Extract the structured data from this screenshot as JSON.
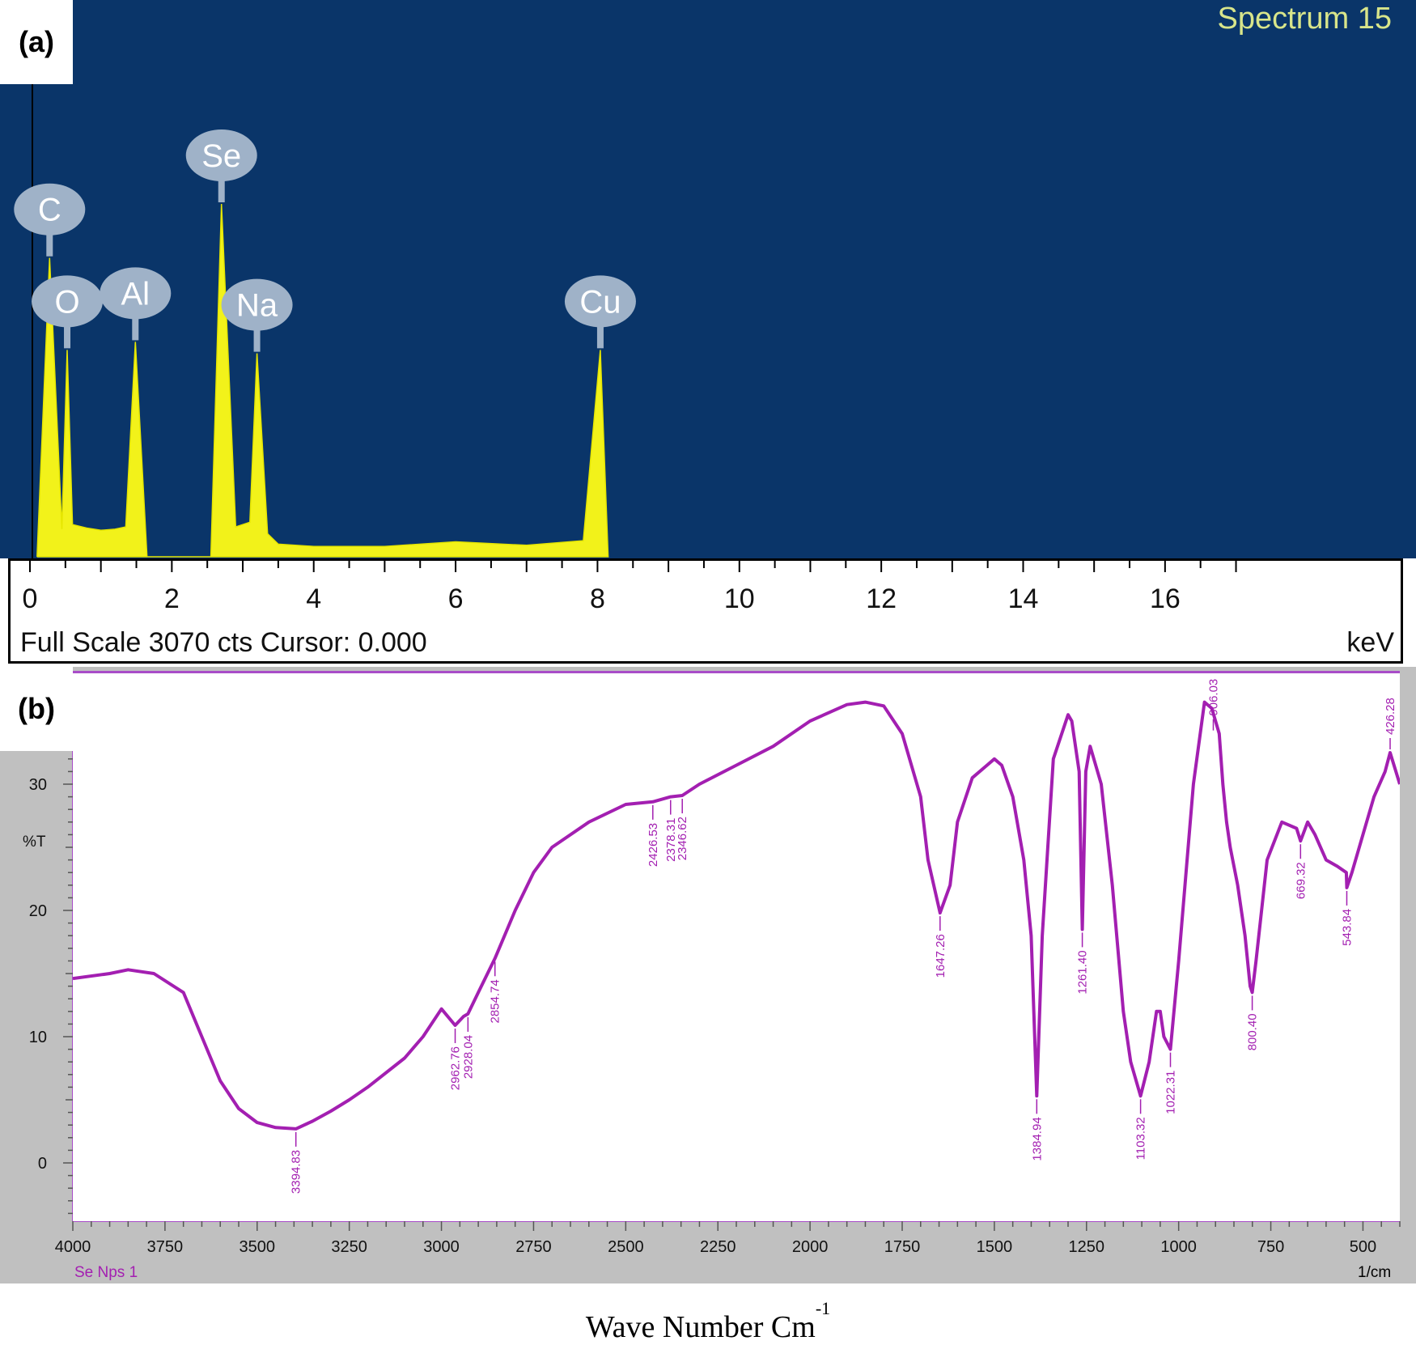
{
  "panels": {
    "a": {
      "label": "(a)",
      "spectrum_title": "Spectrum 15",
      "footer_left": "Full Scale 3070 cts Cursor: 0.000",
      "x_unit": "keV",
      "x_ticks": [
        0,
        2,
        4,
        6,
        8,
        10,
        12,
        14,
        16
      ]
    },
    "b": {
      "label": "(b)",
      "y_axis_label": "%T",
      "y_ticks": [
        0,
        10,
        20,
        30
      ],
      "x_ticks": [
        4000,
        3750,
        3500,
        3250,
        3000,
        2750,
        2500,
        2250,
        2000,
        1750,
        1500,
        1250,
        1000,
        750,
        500
      ],
      "sample_name": "Se Nps 1",
      "x_unit": "1/cm"
    }
  },
  "x_axis_caption": {
    "text": "Wave Number Cm",
    "superscript": "-1"
  },
  "colors": {
    "edx_background": "#0a3569",
    "edx_peaks": "#f2f21a",
    "ftir_line": "#a31fb1",
    "frame_gray": "#c0c0c0"
  },
  "chart_data": [
    {
      "type": "line",
      "title": "Spectrum 15",
      "xlabel": "keV",
      "xlim": [
        0,
        17.5
      ],
      "footer": "Full Scale 3070 cts Cursor: 0.000",
      "series": [
        {
          "x": [
            0.1,
            0.277,
            0.45,
            0.525,
            0.6,
            0.8,
            1.0,
            1.2,
            1.35,
            1.486,
            1.65,
            1.8,
            2.0,
            2.2,
            2.4,
            2.55,
            2.7,
            2.9,
            3.1,
            3.2,
            3.35,
            3.5,
            4.0,
            5.0,
            6.0,
            7.0,
            7.8,
            8.04,
            8.15
          ],
          "y": [
            0,
            2600,
            240,
            1800,
            280,
            250,
            230,
            240,
            260,
            1870,
            0,
            0,
            0,
            0,
            0,
            0,
            3070,
            260,
            300,
            1770,
            200,
            110,
            90,
            90,
            130,
            100,
            140,
            1800,
            0
          ]
        }
      ],
      "peak_labels": [
        {
          "element": "C",
          "x": 0.277
        },
        {
          "element": "O",
          "x": 0.525
        },
        {
          "element": "Al",
          "x": 1.486
        },
        {
          "element": "Se",
          "x": 2.7
        },
        {
          "element": "Na",
          "x": 3.2
        },
        {
          "element": "Cu",
          "x": 8.04
        }
      ]
    },
    {
      "type": "line",
      "title": "",
      "xlabel": "Wave Number Cm-1",
      "ylabel": "%T",
      "xlim": [
        4000,
        400
      ],
      "ylim": [
        -4.5,
        37.5
      ],
      "series": [
        {
          "name": "Se Nps 1",
          "x": [
            4000,
            3900,
            3850,
            3780,
            3700,
            3650,
            3600,
            3550,
            3500,
            3450,
            3394.83,
            3350,
            3300,
            3250,
            3200,
            3100,
            3050,
            3000,
            2962.76,
            2940,
            2928.04,
            2900,
            2854.74,
            2800,
            2750,
            2700,
            2600,
            2500,
            2426.53,
            2378.31,
            2346.62,
            2300,
            2200,
            2100,
            2000,
            1900,
            1850,
            1800,
            1750,
            1700,
            1680,
            1647.26,
            1620,
            1600,
            1560,
            1520,
            1500,
            1480,
            1450,
            1420,
            1400,
            1384.94,
            1370,
            1340,
            1300,
            1290,
            1270,
            1261.4,
            1252,
            1240,
            1210,
            1180,
            1150,
            1130,
            1103.32,
            1080,
            1060,
            1050,
            1040,
            1022.31,
            1000,
            960,
            930,
            910,
            890,
            880,
            870,
            860,
            840,
            820,
            806,
            800.4,
            790,
            760,
            720,
            680,
            669.32,
            650,
            630,
            600,
            570,
            545,
            543.84,
            530,
            500,
            470,
            440,
            426.28,
            400
          ],
          "y": [
            14.6,
            15.0,
            15.3,
            15.0,
            13.5,
            10.0,
            6.5,
            4.3,
            3.2,
            2.8,
            2.7,
            3.3,
            4.1,
            5.0,
            6.0,
            8.3,
            10.0,
            12.2,
            10.9,
            11.6,
            11.8,
            13.5,
            16.2,
            20.0,
            23.0,
            25.0,
            27.0,
            28.4,
            28.6,
            29.0,
            29.1,
            30.0,
            31.5,
            33.0,
            35.0,
            36.3,
            36.5,
            36.2,
            34.0,
            29.0,
            24.0,
            19.8,
            22.0,
            27.0,
            30.5,
            31.5,
            32.0,
            31.5,
            29.0,
            24.0,
            18.0,
            5.3,
            18.0,
            32.0,
            35.5,
            35.0,
            31.0,
            18.5,
            31.0,
            33.0,
            30.0,
            22.0,
            12.0,
            8.0,
            5.3,
            8.0,
            12.0,
            12.0,
            10.0,
            9.0,
            16.0,
            30.0,
            36.5,
            36.0,
            34.0,
            30.0,
            27.0,
            25.0,
            22.0,
            18.0,
            14.0,
            13.5,
            16.0,
            24.0,
            27.0,
            26.5,
            25.5,
            27.0,
            26.0,
            24.0,
            23.5,
            23.0,
            21.8,
            23.0,
            26.0,
            29.0,
            31.0,
            32.5,
            30.0
          ],
          "peak_labels": [
            {
              "label": "3394.83",
              "x": 3394.83,
              "y": 2.7
            },
            {
              "label": "2962.76",
              "x": 2962.76,
              "y": 10.9
            },
            {
              "label": "2928.04",
              "x": 2928.04,
              "y": 11.8
            },
            {
              "label": "2854.74",
              "x": 2854.74,
              "y": 16.2
            },
            {
              "label": "2426.53",
              "x": 2426.53,
              "y": 28.6
            },
            {
              "label": "2378.31",
              "x": 2378.31,
              "y": 29.0
            },
            {
              "label": "2346.62",
              "x": 2346.62,
              "y": 29.1
            },
            {
              "label": "1647.26",
              "x": 1647.26,
              "y": 19.8
            },
            {
              "label": "1384.94",
              "x": 1384.94,
              "y": 5.3
            },
            {
              "label": "1261.40",
              "x": 1261.4,
              "y": 18.5
            },
            {
              "label": "1103.32",
              "x": 1103.32,
              "y": 5.3
            },
            {
              "label": "1022.31",
              "x": 1022.31,
              "y": 9.0
            },
            {
              "label": "800.40",
              "x": 800.4,
              "y": 13.5
            },
            {
              "label": "906.03",
              "x": 906.03,
              "y": 34.0
            },
            {
              "label": "669.32",
              "x": 669.32,
              "y": 25.5
            },
            {
              "label": "543.84",
              "x": 543.84,
              "y": 21.8
            },
            {
              "label": "426.28",
              "x": 426.28,
              "y": 32.5
            }
          ]
        }
      ]
    }
  ]
}
